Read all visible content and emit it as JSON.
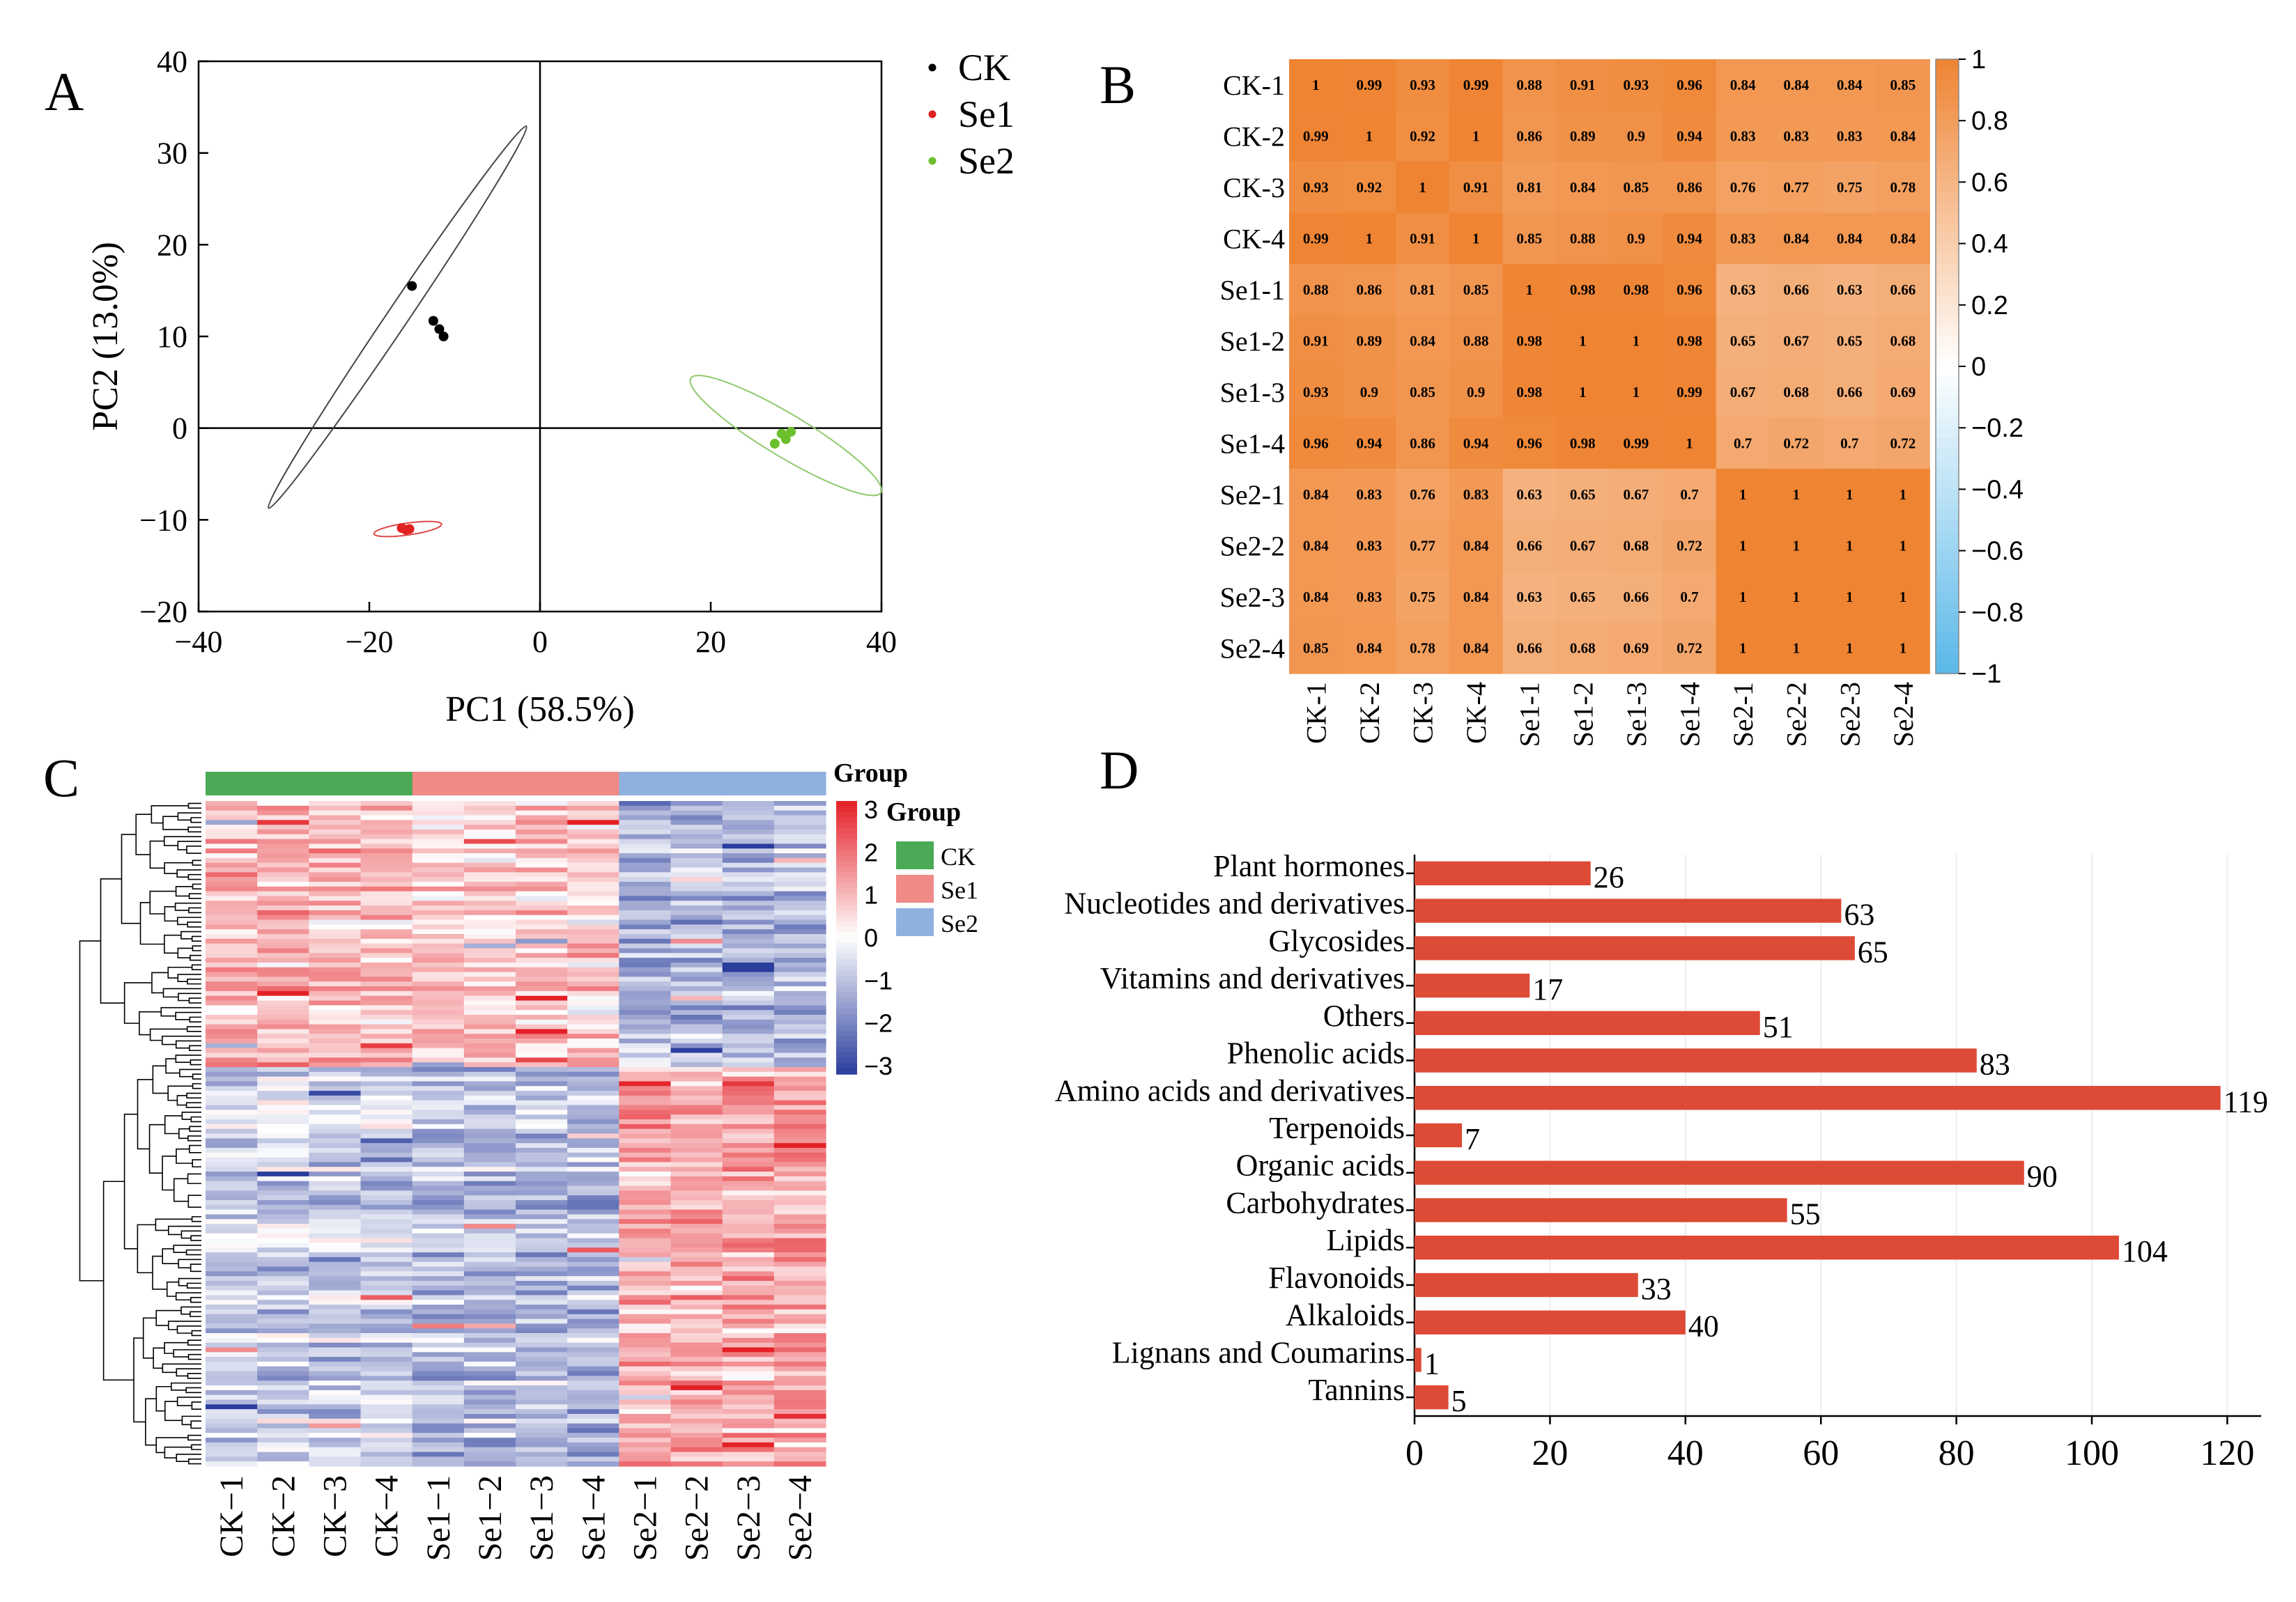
{
  "panels": {
    "A": "A",
    "B": "B",
    "C": "C",
    "D": "D"
  },
  "chart_data": [
    {
      "panel": "A",
      "type": "scatter",
      "xlabel": "PC1 (58.5%)",
      "ylabel": "PC2 (13.0%)",
      "xlim": [
        -40,
        40
      ],
      "ylim": [
        -20,
        40
      ],
      "xticks": [
        "−40",
        "−20",
        "0",
        "20",
        "40"
      ],
      "yticks": [
        "−20",
        "−10",
        "0",
        "10",
        "20",
        "30",
        "40"
      ],
      "series": [
        {
          "name": "CK",
          "color": "#000000",
          "points": [
            [
              -15,
              15.5
            ],
            [
              -12.5,
              11.7
            ],
            [
              -11.8,
              10.8
            ],
            [
              -11.3,
              10
            ]
          ],
          "ellipse": {
            "cx": -16.7,
            "cy": 12.1,
            "rx": 27,
            "ry": 1.25,
            "angle_deg": -56,
            "color": "#444444"
          }
        },
        {
          "name": "Se1",
          "color": "#e02020",
          "points": [
            [
              -16.2,
              -10.9
            ],
            [
              -15.7,
              -11.1
            ],
            [
              -15.3,
              -11
            ]
          ],
          "ellipse": {
            "cx": -15.5,
            "cy": -11,
            "rx": 4,
            "ry": 0.7,
            "angle_deg": -8,
            "color": "#e04848"
          }
        },
        {
          "name": "Se2",
          "color": "#6cbf2c",
          "points": [
            [
              27.5,
              -1.7
            ],
            [
              28.3,
              -0.6
            ],
            [
              28.8,
              -1.2
            ],
            [
              29.4,
              -0.4
            ]
          ],
          "ellipse": {
            "cx": 28.8,
            "cy": -0.8,
            "rx": 13,
            "ry": 2.5,
            "angle_deg": 31,
            "color": "#8ec96a"
          }
        }
      ]
    },
    {
      "panel": "B",
      "type": "heatmap",
      "labels": [
        "CK-1",
        "CK-2",
        "CK-3",
        "CK-4",
        "Se1-1",
        "Se1-2",
        "Se1-3",
        "Se1-4",
        "Se2-1",
        "Se2-2",
        "Se2-3",
        "Se2-4"
      ],
      "values": [
        [
          "1",
          "0.99",
          "0.93",
          "0.99",
          "0.88",
          "0.91",
          "0.93",
          "0.96",
          "0.84",
          "0.84",
          "0.84",
          "0.85"
        ],
        [
          "0.99",
          "1",
          "0.92",
          "1",
          "0.86",
          "0.89",
          "0.9",
          "0.94",
          "0.83",
          "0.83",
          "0.83",
          "0.84"
        ],
        [
          "0.93",
          "0.92",
          "1",
          "0.91",
          "0.81",
          "0.84",
          "0.85",
          "0.86",
          "0.76",
          "0.77",
          "0.75",
          "0.78"
        ],
        [
          "0.99",
          "1",
          "0.91",
          "1",
          "0.85",
          "0.88",
          "0.9",
          "0.94",
          "0.83",
          "0.84",
          "0.84",
          "0.84"
        ],
        [
          "0.88",
          "0.86",
          "0.81",
          "0.85",
          "1",
          "0.98",
          "0.98",
          "0.96",
          "0.63",
          "0.66",
          "0.63",
          "0.66"
        ],
        [
          "0.91",
          "0.89",
          "0.84",
          "0.88",
          "0.98",
          "1",
          "1",
          "0.98",
          "0.65",
          "0.67",
          "0.65",
          "0.68"
        ],
        [
          "0.93",
          "0.9",
          "0.85",
          "0.9",
          "0.98",
          "1",
          "1",
          "0.99",
          "0.67",
          "0.68",
          "0.66",
          "0.69"
        ],
        [
          "0.96",
          "0.94",
          "0.86",
          "0.94",
          "0.96",
          "0.98",
          "0.99",
          "1",
          "0.7",
          "0.72",
          "0.7",
          "0.72"
        ],
        [
          "0.84",
          "0.83",
          "0.76",
          "0.83",
          "0.63",
          "0.65",
          "0.67",
          "0.7",
          "1",
          "1",
          "1",
          "1"
        ],
        [
          "0.84",
          "0.83",
          "0.77",
          "0.84",
          "0.66",
          "0.67",
          "0.68",
          "0.72",
          "1",
          "1",
          "1",
          "1"
        ],
        [
          "0.84",
          "0.83",
          "0.75",
          "0.84",
          "0.63",
          "0.65",
          "0.66",
          "0.7",
          "1",
          "1",
          "1",
          "1"
        ],
        [
          "0.85",
          "0.84",
          "0.78",
          "0.84",
          "0.66",
          "0.68",
          "0.69",
          "0.72",
          "1",
          "1",
          "1",
          "1"
        ]
      ],
      "colorbar": {
        "range": [
          -1,
          1
        ],
        "ticks": [
          "1",
          "0.8",
          "0.6",
          "0.4",
          "0.2",
          "0",
          "−0.2",
          "−0.4",
          "−0.6",
          "−0.8",
          "−1"
        ],
        "low_color": "#5ab8e8",
        "mid_color": "#ffffff",
        "high_color": "#ef8432"
      }
    },
    {
      "panel": "C",
      "type": "heatmap",
      "columns": [
        "CK−1",
        "CK−2",
        "CK−3",
        "CK−4",
        "Se1−1",
        "Se1−2",
        "Se1−3",
        "Se1−4",
        "Se2−1",
        "Se2−2",
        "Se2−3",
        "Se2−4"
      ],
      "column_groups": [
        "CK",
        "CK",
        "CK",
        "CK",
        "Se1",
        "Se1",
        "Se1",
        "Se1",
        "Se2",
        "Se2",
        "Se2",
        "Se2"
      ],
      "group_title": "Group",
      "groups": [
        {
          "name": "CK",
          "color": "#4aaa55"
        },
        {
          "name": "Se1",
          "color": "#ef8a86"
        },
        {
          "name": "Se2",
          "color": "#8fb1de"
        }
      ],
      "scale": {
        "range": [
          -3,
          3
        ],
        "ticks": [
          "3",
          "2",
          "1",
          "0",
          "−1",
          "−2",
          "−3"
        ],
        "low_color": "#2a3d9c",
        "mid_color": "#ffffff",
        "high_color": "#e41f26"
      },
      "row_profile": {
        "rows": 140,
        "block_means": [
          {
            "from_row": 0,
            "to_row": 56,
            "CK": 0.9,
            "Se1": 0.7,
            "Se2": -1.1
          },
          {
            "from_row": 56,
            "to_row": 140,
            "CK": -0.7,
            "Se1": -1.0,
            "Se2": 1.1
          }
        ]
      }
    },
    {
      "panel": "D",
      "type": "bar",
      "orientation": "horizontal",
      "categories": [
        "Plant hormones",
        "Nucleotides and derivatives",
        "Glycosides",
        "Vitamins and derivatives",
        "Others",
        "Phenolic acids",
        "Amino acids and derivatives",
        "Terpenoids",
        "Organic acids",
        "Carbohydrates",
        "Lipids",
        "Flavonoids",
        "Alkaloids",
        "Lignans and Coumarins",
        "Tannins"
      ],
      "values": [
        26,
        63,
        65,
        17,
        51,
        83,
        119,
        7,
        90,
        55,
        104,
        33,
        40,
        1,
        5
      ],
      "xlim": [
        0,
        125
      ],
      "xticks": [
        "0",
        "20",
        "40",
        "60",
        "80",
        "100",
        "120"
      ],
      "bar_color": "#dd4a36"
    }
  ]
}
